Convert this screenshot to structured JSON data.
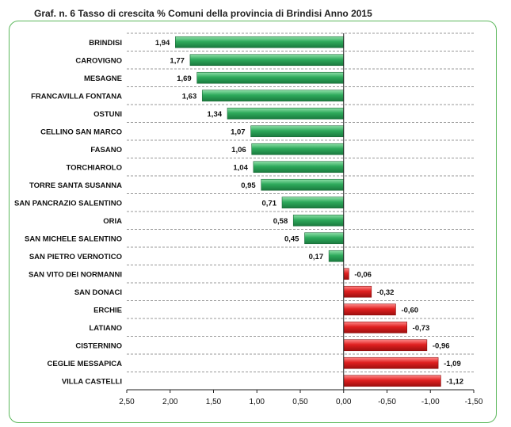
{
  "title": "Graf. n. 6 Tasso di crescita %  Comuni della provincia di Brindisi Anno 2015",
  "colors": {
    "positive": "#2eaa5c",
    "negative": "#e02020",
    "frame": "#5cb85c",
    "grid": "#777777"
  },
  "chart_data": {
    "type": "bar",
    "orientation": "horizontal",
    "title": "Graf. n. 6 Tasso di crescita %  Comuni della provincia di Brindisi Anno 2015",
    "xlabel": "",
    "ylabel": "",
    "categories": [
      "BRINDISI",
      "CAROVIGNO",
      "MESAGNE",
      "FRANCAVILLA FONTANA",
      "OSTUNI",
      "CELLINO SAN MARCO",
      "FASANO",
      "TORCHIAROLO",
      "TORRE SANTA SUSANNA",
      "SAN PANCRAZIO SALENTINO",
      "ORIA",
      "SAN MICHELE SALENTINO",
      "SAN PIETRO VERNOTICO",
      "SAN VITO DEI NORMANNI",
      "SAN DONACI",
      "ERCHIE",
      "LATIANO",
      "CISTERNINO",
      "CEGLIE MESSAPICA",
      "VILLA CASTELLI"
    ],
    "values": [
      1.94,
      1.77,
      1.69,
      1.63,
      1.34,
      1.07,
      1.06,
      1.04,
      0.95,
      0.71,
      0.58,
      0.45,
      0.17,
      -0.06,
      -0.32,
      -0.6,
      -0.73,
      -0.96,
      -1.09,
      -1.12
    ],
    "value_labels": [
      "1,94",
      "1,77",
      "1,69",
      "1,63",
      "1,34",
      "1,07",
      "1,06",
      "1,04",
      "0,95",
      "0,71",
      "0,58",
      "0,45",
      "0,17",
      "-0,06",
      "-0,32",
      "-0,60",
      "-0,73",
      "-0,96",
      "-1,09",
      "-1,12"
    ],
    "x_axis_reversed": true,
    "xlim": [
      2.5,
      -1.5
    ],
    "x_ticks": [
      2.5,
      2.0,
      1.5,
      1.0,
      0.5,
      0.0,
      -0.5,
      -1.0,
      -1.5
    ],
    "x_tick_labels": [
      "2,50",
      "2,00",
      "1,50",
      "1,00",
      "0,50",
      "0,00",
      "-0,50",
      "-1,00",
      "-1,50"
    ],
    "grid": "horizontal dashed",
    "legend": "none"
  }
}
